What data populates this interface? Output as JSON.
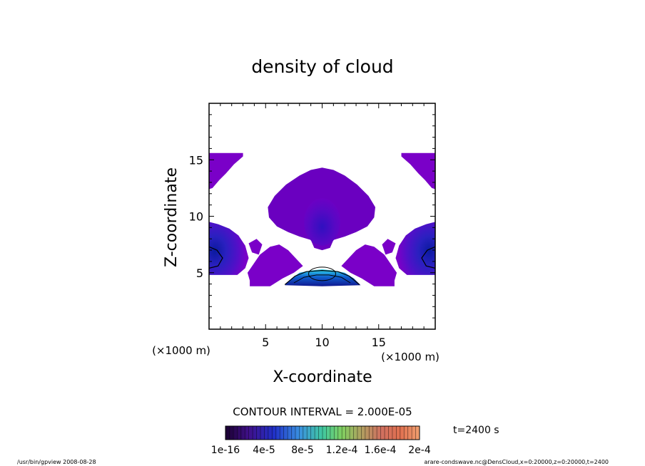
{
  "chart_data": {
    "type": "heatmap",
    "title": "density of cloud",
    "xlabel": "X-coordinate",
    "ylabel": "Z-coordinate",
    "x_unit": "(×1000 m)",
    "z_unit": "(×1000 m)",
    "xlim": [
      0,
      20
    ],
    "zlim": [
      0,
      20
    ],
    "x_ticks": [
      "5",
      "10",
      "15"
    ],
    "z_ticks": [
      "5",
      "10",
      "15"
    ],
    "contour_interval_text": "CONTOUR INTERVAL = 2.000E-05",
    "time_label": "t=2400 s",
    "colorbar": {
      "tick_labels": [
        "1e-16",
        "4e-5",
        "8e-5",
        "1.2e-4",
        "1.6e-4",
        "2e-4"
      ],
      "min": 0,
      "max": 0.0002
    },
    "regions": [
      {
        "name": "upper-left",
        "x": [
          0,
          3
        ],
        "z": [
          12.5,
          15.5
        ],
        "level": "low"
      },
      {
        "name": "upper-right",
        "x": [
          17,
          20
        ],
        "z": [
          12.5,
          15.5
        ],
        "level": "low"
      },
      {
        "name": "central-plume",
        "x": [
          5,
          15
        ],
        "z": [
          7,
          14.2
        ],
        "level": "low-mid"
      },
      {
        "name": "left-edge-core",
        "x": [
          0,
          3.5
        ],
        "z": [
          4.8,
          9.5
        ],
        "level": "mid"
      },
      {
        "name": "right-edge-core",
        "x": [
          16.5,
          20
        ],
        "z": [
          4.8,
          9.5
        ],
        "level": "mid"
      },
      {
        "name": "base-layer",
        "x": [
          6.5,
          14
        ],
        "z": [
          3.8,
          5.2
        ],
        "level": "high"
      }
    ]
  },
  "footer": {
    "left": "/usr/bin/gpview  2008-08-28",
    "right": "arare-condswave.nc@DensCloud,x=0:20000,z=0:20000,t=2400"
  },
  "colors": {
    "low": "#7a00c8",
    "lowmid": "#6a00c0",
    "mid": "#3c18c8",
    "deep": "#1010b0",
    "cyan": "#30d0e0"
  }
}
